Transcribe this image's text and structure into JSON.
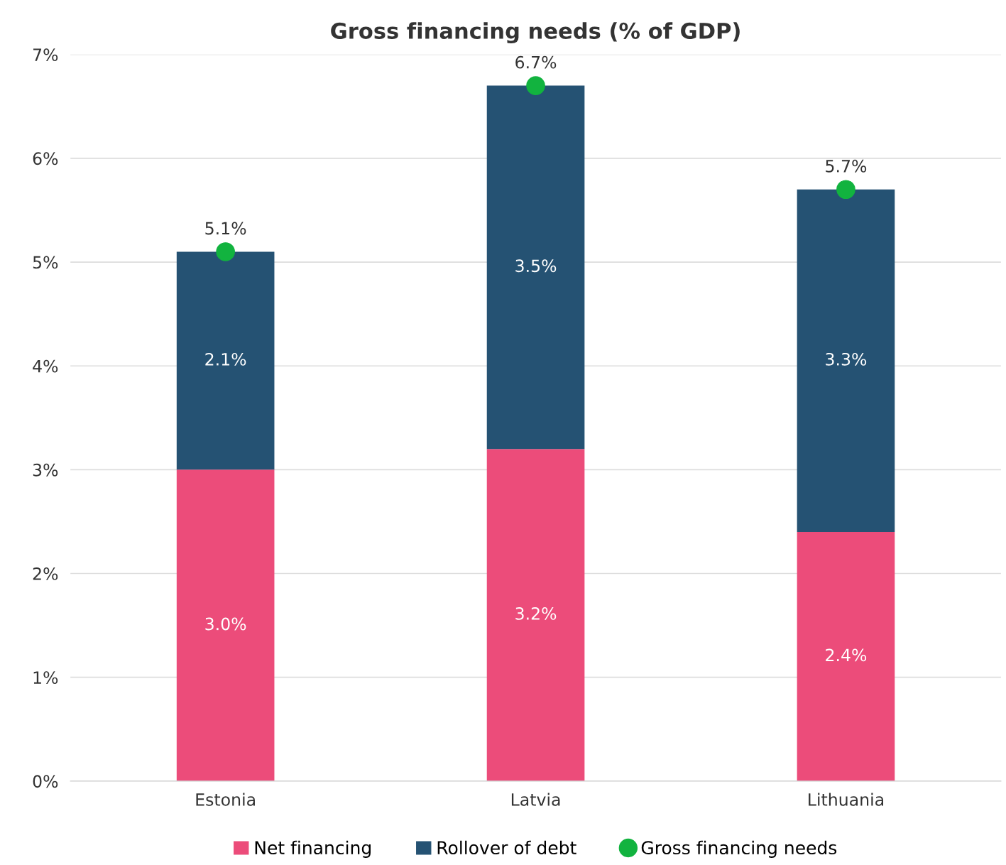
{
  "chart_data": {
    "type": "bar",
    "title": "Gross financing needs (% of GDP)",
    "stacked": true,
    "categories": [
      "Estonia",
      "Latvia",
      "Lithuania"
    ],
    "series": [
      {
        "name": "Net financing",
        "color": "#ec4c7a",
        "values": [
          3.0,
          3.2,
          2.4
        ],
        "value_labels": [
          "3.0%",
          "3.2%",
          "2.4%"
        ]
      },
      {
        "name": "Rollover of debt",
        "color": "#255273",
        "values": [
          2.1,
          3.5,
          3.3
        ],
        "value_labels": [
          "2.1%",
          "3.5%",
          "3.3%"
        ]
      },
      {
        "name": "Gross financing needs",
        "type": "scatter",
        "color": "#12b33f",
        "values": [
          5.1,
          6.7,
          5.7
        ],
        "value_labels": [
          "5.1%",
          "6.7%",
          "5.7%"
        ]
      }
    ],
    "ylim": [
      0,
      7
    ],
    "yticks": [
      {
        "value": 0,
        "label": "0%"
      },
      {
        "value": 1,
        "label": "1%"
      },
      {
        "value": 2,
        "label": "2%"
      },
      {
        "value": 3,
        "label": "3%"
      },
      {
        "value": 4,
        "label": "4%"
      },
      {
        "value": 5,
        "label": "5%"
      },
      {
        "value": 6,
        "label": "6%"
      },
      {
        "value": 7,
        "label": "7%"
      }
    ],
    "grid": "y",
    "legend": "bottom",
    "marker": "circle"
  }
}
